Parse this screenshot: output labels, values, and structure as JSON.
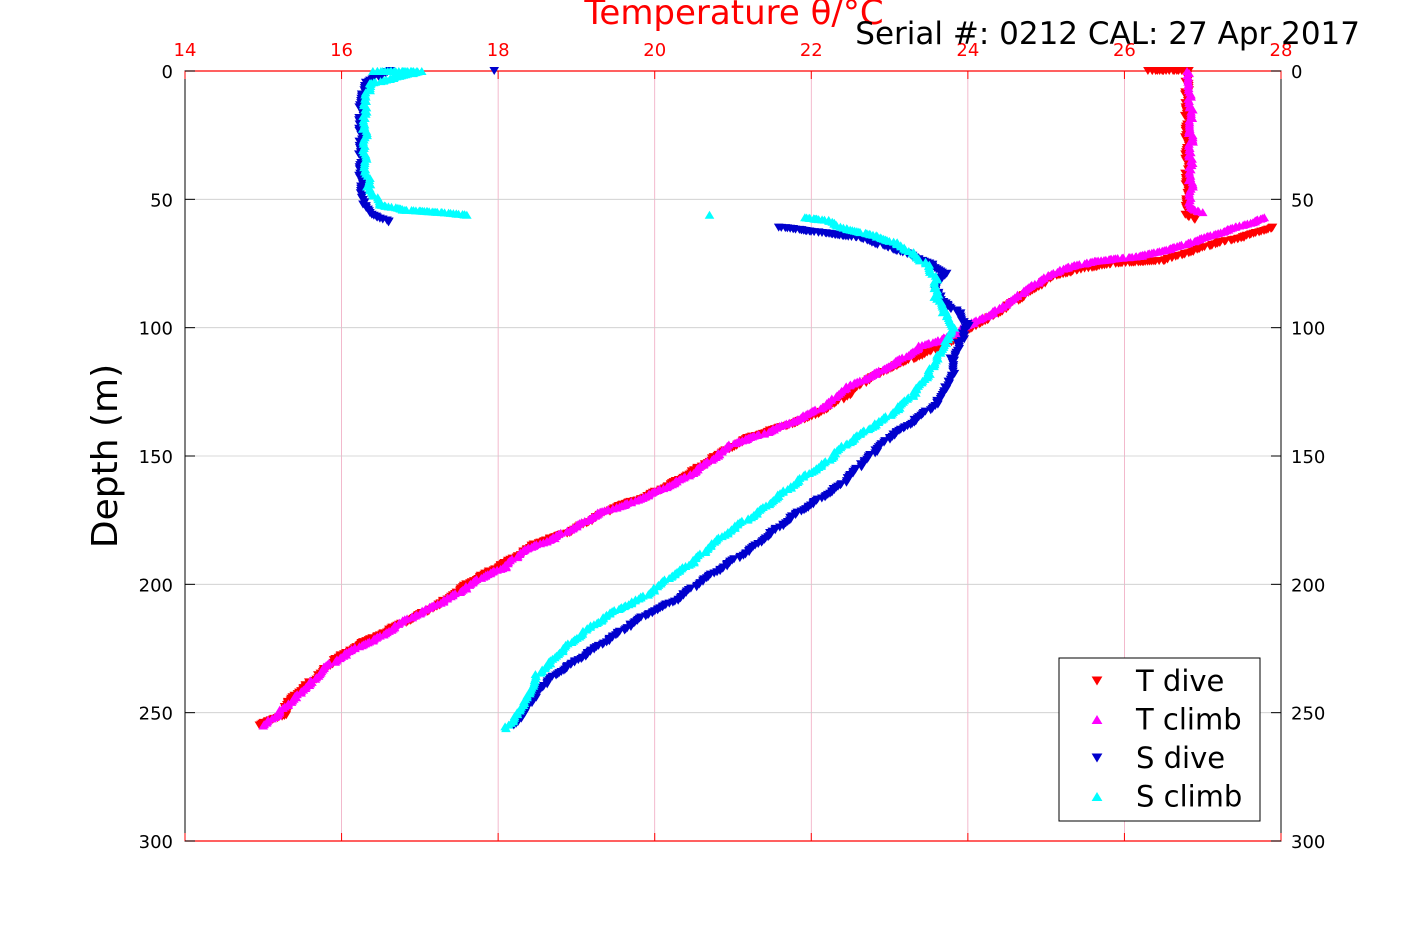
{
  "colors": {
    "t_dive": "#ff0000",
    "t_climb": "#ff00ff",
    "s_dive": "#0000cd",
    "s_climb": "#00ffff",
    "top_axis": "#ff0000",
    "grid_x": "#f0a8c0",
    "grid_y": "#cccccc"
  },
  "chart_data": {
    "type": "scatter",
    "title": "Temperature θ/°C",
    "serial": "Serial #: 0212  CAL: 27 Apr 2017",
    "ylabel": "Depth (m)",
    "xlim": [
      14,
      28
    ],
    "ylim": [
      0,
      300
    ],
    "y_reversed": true,
    "x_axis_position": "top",
    "x_ticks": [
      14,
      16,
      18,
      20,
      22,
      24,
      26,
      28
    ],
    "y_ticks": [
      0,
      50,
      100,
      150,
      200,
      250,
      300
    ],
    "grid": true,
    "legend_position": "bottom-right",
    "series": [
      {
        "name": "T dive",
        "color_key": "t_dive",
        "marker": "triangle-down",
        "points": [
          [
            26.3,
            0
          ],
          [
            26.6,
            0
          ],
          [
            26.8,
            0
          ],
          [
            26.8,
            5
          ],
          [
            26.8,
            10
          ],
          [
            26.8,
            20
          ],
          [
            26.8,
            30
          ],
          [
            26.8,
            40
          ],
          [
            26.8,
            50
          ],
          [
            26.8,
            56
          ],
          [
            26.9,
            58
          ],
          [
            27.9,
            61
          ],
          [
            27.5,
            65
          ],
          [
            27.2,
            67
          ],
          [
            26.8,
            71
          ],
          [
            26.5,
            74
          ],
          [
            25.9,
            75
          ],
          [
            25.5,
            77
          ],
          [
            25.1,
            80
          ],
          [
            24.8,
            86
          ],
          [
            24.6,
            90
          ],
          [
            24.3,
            96
          ],
          [
            24.1,
            99
          ],
          [
            23.9,
            103
          ],
          [
            23.7,
            107
          ],
          [
            23.4,
            111
          ],
          [
            23.0,
            116
          ],
          [
            22.7,
            121
          ],
          [
            22.4,
            128
          ],
          [
            22.0,
            135
          ],
          [
            21.6,
            139
          ],
          [
            21.2,
            143
          ],
          [
            20.8,
            150
          ],
          [
            20.5,
            156
          ],
          [
            20.2,
            161
          ],
          [
            19.9,
            166
          ],
          [
            19.5,
            170
          ],
          [
            19.2,
            175
          ],
          [
            18.9,
            180
          ],
          [
            18.5,
            184
          ],
          [
            18.2,
            190
          ],
          [
            17.9,
            195
          ],
          [
            17.6,
            200
          ],
          [
            17.3,
            207
          ],
          [
            17.0,
            212
          ],
          [
            16.6,
            218
          ],
          [
            16.2,
            224
          ],
          [
            15.9,
            230
          ],
          [
            15.7,
            236
          ],
          [
            15.5,
            241
          ],
          [
            15.3,
            247
          ],
          [
            15.3,
            251
          ],
          [
            15.1,
            253
          ],
          [
            14.95,
            255
          ]
        ]
      },
      {
        "name": "T climb",
        "color_key": "t_climb",
        "marker": "triangle-up",
        "points": [
          [
            26.8,
            0
          ],
          [
            26.8,
            5
          ],
          [
            26.85,
            15
          ],
          [
            26.85,
            25
          ],
          [
            26.85,
            35
          ],
          [
            26.85,
            45
          ],
          [
            26.85,
            53
          ],
          [
            27.0,
            55
          ],
          [
            27.8,
            57
          ],
          [
            27.4,
            61
          ],
          [
            27.0,
            65
          ],
          [
            26.6,
            69
          ],
          [
            26.2,
            72
          ],
          [
            25.6,
            74
          ],
          [
            25.2,
            77
          ],
          [
            24.9,
            82
          ],
          [
            24.7,
            86
          ],
          [
            24.5,
            91
          ],
          [
            24.2,
            96
          ],
          [
            24.0,
            99
          ],
          [
            23.8,
            103
          ],
          [
            23.4,
            107
          ],
          [
            23.1,
            113
          ],
          [
            22.8,
            118
          ],
          [
            22.4,
            124
          ],
          [
            22.2,
            130
          ],
          [
            21.8,
            136
          ],
          [
            21.4,
            141
          ],
          [
            21.0,
            145
          ],
          [
            20.7,
            152
          ],
          [
            20.4,
            158
          ],
          [
            20.0,
            164
          ],
          [
            19.7,
            168
          ],
          [
            19.3,
            172
          ],
          [
            19.0,
            177
          ],
          [
            18.7,
            182
          ],
          [
            18.3,
            187
          ],
          [
            18.1,
            193
          ],
          [
            17.8,
            197
          ],
          [
            17.5,
            203
          ],
          [
            17.2,
            208
          ],
          [
            16.8,
            214
          ],
          [
            16.5,
            220
          ],
          [
            16.1,
            226
          ],
          [
            15.8,
            232
          ],
          [
            15.6,
            238
          ],
          [
            15.4,
            244
          ],
          [
            15.2,
            250
          ],
          [
            15.0,
            255
          ]
        ]
      },
      {
        "name": "S dive",
        "color_key": "s_dive",
        "marker": "triangle-down",
        "points": [
          [
            17.95,
            0
          ],
          [
            16.6,
            0
          ],
          [
            16.3,
            5
          ],
          [
            16.25,
            15
          ],
          [
            16.25,
            25
          ],
          [
            16.25,
            35
          ],
          [
            16.25,
            45
          ],
          [
            16.3,
            52
          ],
          [
            16.4,
            56
          ],
          [
            16.6,
            59
          ],
          [
            21.6,
            61
          ],
          [
            22.1,
            63
          ],
          [
            22.6,
            65
          ],
          [
            22.9,
            68
          ],
          [
            23.2,
            71
          ],
          [
            23.5,
            75
          ],
          [
            23.7,
            79
          ],
          [
            23.6,
            85
          ],
          [
            23.7,
            90
          ],
          [
            23.9,
            95
          ],
          [
            24.0,
            100
          ],
          [
            23.9,
            106
          ],
          [
            23.8,
            112
          ],
          [
            23.8,
            118
          ],
          [
            23.7,
            124
          ],
          [
            23.6,
            130
          ],
          [
            23.3,
            137
          ],
          [
            23.0,
            143
          ],
          [
            22.8,
            149
          ],
          [
            22.6,
            155
          ],
          [
            22.4,
            161
          ],
          [
            22.1,
            167
          ],
          [
            21.8,
            173
          ],
          [
            21.5,
            180
          ],
          [
            21.2,
            187
          ],
          [
            20.9,
            193
          ],
          [
            20.6,
            199
          ],
          [
            20.3,
            206
          ],
          [
            19.9,
            212
          ],
          [
            19.6,
            218
          ],
          [
            19.3,
            224
          ],
          [
            19.0,
            230
          ],
          [
            18.7,
            236
          ],
          [
            18.5,
            242
          ],
          [
            18.4,
            247
          ],
          [
            18.3,
            251
          ],
          [
            18.2,
            255
          ]
        ]
      },
      {
        "name": "S climb",
        "color_key": "s_climb",
        "marker": "triangle-up",
        "points": [
          [
            16.4,
            0
          ],
          [
            16.6,
            0
          ],
          [
            17.0,
            0
          ],
          [
            16.35,
            5
          ],
          [
            16.3,
            15
          ],
          [
            16.3,
            25
          ],
          [
            16.3,
            35
          ],
          [
            16.35,
            45
          ],
          [
            16.5,
            52
          ],
          [
            16.8,
            54
          ],
          [
            17.3,
            55
          ],
          [
            17.6,
            56
          ],
          [
            20.7,
            56
          ],
          [
            21.9,
            57
          ],
          [
            22.2,
            58
          ],
          [
            22.4,
            61
          ],
          [
            22.8,
            64
          ],
          [
            23.1,
            67
          ],
          [
            23.3,
            71
          ],
          [
            23.5,
            76
          ],
          [
            23.6,
            82
          ],
          [
            23.6,
            88
          ],
          [
            23.7,
            94
          ],
          [
            23.8,
            100
          ],
          [
            23.7,
            106
          ],
          [
            23.6,
            112
          ],
          [
            23.5,
            118
          ],
          [
            23.3,
            126
          ],
          [
            23.0,
            134
          ],
          [
            22.7,
            140
          ],
          [
            22.4,
            146
          ],
          [
            22.2,
            152
          ],
          [
            21.9,
            158
          ],
          [
            21.6,
            165
          ],
          [
            21.3,
            172
          ],
          [
            21.0,
            178
          ],
          [
            20.7,
            185
          ],
          [
            20.5,
            191
          ],
          [
            20.2,
            197
          ],
          [
            19.9,
            204
          ],
          [
            19.5,
            210
          ],
          [
            19.2,
            216
          ],
          [
            18.9,
            223
          ],
          [
            18.7,
            229
          ],
          [
            18.5,
            235
          ],
          [
            18.4,
            241
          ],
          [
            18.3,
            247
          ],
          [
            18.2,
            252
          ],
          [
            18.1,
            256
          ]
        ]
      }
    ]
  }
}
